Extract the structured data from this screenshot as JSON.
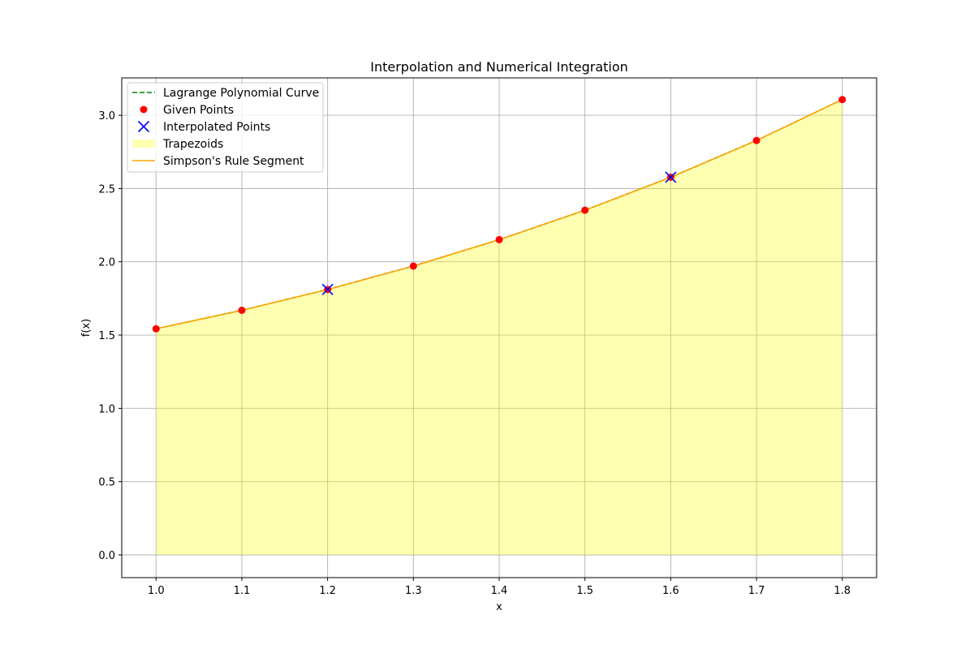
{
  "chart_data": {
    "type": "line",
    "title": "Interpolation and Numerical Integration",
    "xlabel": "x",
    "ylabel": "f(x)",
    "xlim": [
      0.96,
      1.84
    ],
    "ylim": [
      -0.155,
      3.255
    ],
    "xticks": [
      1.0,
      1.1,
      1.2,
      1.3,
      1.4,
      1.5,
      1.6,
      1.7,
      1.8
    ],
    "xtick_labels": [
      "1.0",
      "1.1",
      "1.2",
      "1.3",
      "1.4",
      "1.5",
      "1.6",
      "1.7",
      "1.8"
    ],
    "yticks": [
      0.0,
      0.5,
      1.0,
      1.5,
      2.0,
      2.5,
      3.0
    ],
    "ytick_labels": [
      "0.0",
      "0.5",
      "1.0",
      "1.5",
      "2.0",
      "2.5",
      "3.0"
    ],
    "grid": true,
    "legend_position": "top-left",
    "x": [
      1.0,
      1.1,
      1.2,
      1.3,
      1.4,
      1.5,
      1.6,
      1.7,
      1.8
    ],
    "series": [
      {
        "name": "Lagrange Polynomial Curve",
        "kind": "dashed-line",
        "color": "#008000",
        "values": [
          1.543,
          1.669,
          1.811,
          1.971,
          2.151,
          2.352,
          2.577,
          2.828,
          3.107
        ]
      },
      {
        "name": "Given Points",
        "kind": "scatter",
        "color": "#ff0000",
        "values": [
          1.543,
          1.669,
          1.811,
          1.971,
          2.151,
          2.352,
          2.577,
          2.828,
          3.107
        ]
      },
      {
        "name": "Interpolated Points",
        "kind": "x-markers",
        "color": "#0000ff",
        "x": [
          1.2,
          1.6
        ],
        "values": [
          1.811,
          2.577
        ]
      },
      {
        "name": "Trapezoids",
        "kind": "area",
        "color": "#ffff00",
        "values": [
          1.543,
          1.669,
          1.811,
          1.971,
          2.151,
          2.352,
          2.577,
          2.828,
          3.107
        ]
      },
      {
        "name": "Simpson's Rule Segment",
        "kind": "line",
        "color": "#ffa500",
        "values": [
          1.543,
          1.669,
          1.811,
          1.971,
          2.151,
          2.352,
          2.577,
          2.828,
          3.107
        ]
      }
    ]
  }
}
